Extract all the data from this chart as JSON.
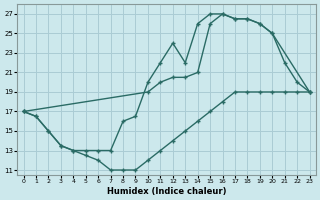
{
  "xlabel": "Humidex (Indice chaleur)",
  "bg_color": "#cce8ec",
  "grid_color": "#aaccd4",
  "line_color": "#2a6b65",
  "xlim": [
    -0.5,
    23.5
  ],
  "ylim": [
    10.5,
    28
  ],
  "xticks": [
    0,
    1,
    2,
    3,
    4,
    5,
    6,
    7,
    8,
    9,
    10,
    11,
    12,
    13,
    14,
    15,
    16,
    17,
    18,
    19,
    20,
    21,
    22,
    23
  ],
  "yticks": [
    11,
    13,
    15,
    17,
    19,
    21,
    23,
    25,
    27
  ],
  "line1_x": [
    0,
    1,
    2,
    3,
    4,
    5,
    6,
    7,
    8,
    9,
    10,
    11,
    12,
    13,
    14,
    15,
    16,
    17,
    18,
    19,
    20,
    21,
    22,
    23
  ],
  "line1_y": [
    17,
    16.5,
    15,
    13.5,
    13,
    12.5,
    12,
    11,
    11,
    11,
    12,
    13,
    14,
    15,
    16,
    17,
    18,
    19,
    19,
    19,
    19,
    19,
    19,
    19
  ],
  "line2_x": [
    0,
    1,
    2,
    3,
    4,
    5,
    6,
    7,
    8,
    9,
    10,
    11,
    12,
    13,
    14,
    15,
    16,
    17,
    18,
    19,
    20,
    21,
    22,
    23
  ],
  "line2_y": [
    17,
    16.5,
    15,
    13.5,
    13,
    13,
    13,
    13,
    16,
    16.5,
    20,
    22,
    24,
    22,
    26,
    27,
    27,
    26.5,
    26.5,
    26,
    25,
    22,
    20,
    19
  ],
  "line3_x": [
    0,
    10,
    11,
    12,
    13,
    14,
    15,
    16,
    17,
    18,
    19,
    20,
    23
  ],
  "line3_y": [
    17,
    19,
    20,
    20.5,
    20.5,
    21,
    26,
    27,
    26.5,
    26.5,
    26,
    25,
    19
  ]
}
